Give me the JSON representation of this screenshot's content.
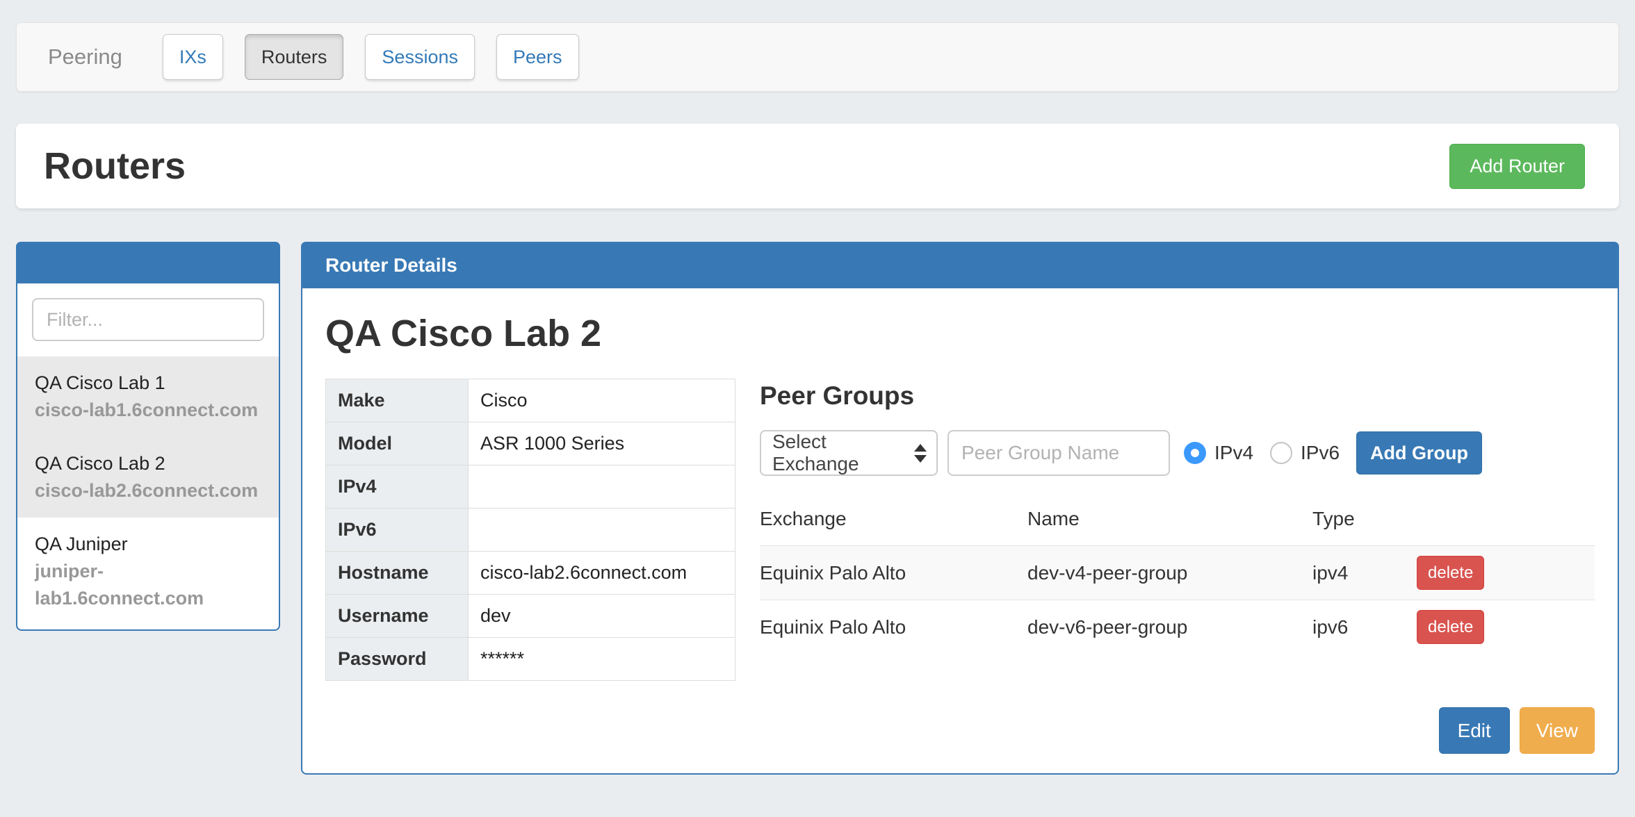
{
  "colors": {
    "primary_blue": "#3879b5",
    "link_blue": "#337ab7",
    "success_green": "#5cb85c",
    "danger_red": "#d9534f",
    "warning_orange": "#f0ad4e",
    "radio_selected_blue": "#3b99fd",
    "page_background": "#eaedf0"
  },
  "nav": {
    "brand": "Peering",
    "tabs": [
      {
        "label": "IXs",
        "active": false
      },
      {
        "label": "Routers",
        "active": true
      },
      {
        "label": "Sessions",
        "active": false
      },
      {
        "label": "Peers",
        "active": false
      }
    ]
  },
  "page_header": {
    "title": "Routers",
    "add_button": "Add Router"
  },
  "sidebar": {
    "filter_placeholder": "Filter...",
    "routers": [
      {
        "name": "QA Cisco Lab 1",
        "hostname": "cisco-lab1.6connect.com",
        "highlighted": true
      },
      {
        "name": "QA Cisco Lab 2",
        "hostname": "cisco-lab2.6connect.com",
        "highlighted": true
      },
      {
        "name": "QA Juniper",
        "hostname": "juniper-lab1.6connect.com",
        "highlighted": false
      }
    ]
  },
  "details": {
    "panel_title": "Router Details",
    "router_name": "QA Cisco Lab 2",
    "fields": [
      {
        "label": "Make",
        "value": "Cisco"
      },
      {
        "label": "Model",
        "value": "ASR 1000 Series"
      },
      {
        "label": "IPv4",
        "value": ""
      },
      {
        "label": "IPv6",
        "value": ""
      },
      {
        "label": "Hostname",
        "value": "cisco-lab2.6connect.com"
      },
      {
        "label": "Username",
        "value": "dev"
      },
      {
        "label": "Password",
        "value": "******"
      }
    ],
    "actions": {
      "edit": "Edit",
      "view": "View"
    }
  },
  "peer_groups": {
    "title": "Peer Groups",
    "exchange_select_value": "Select Exchange",
    "name_placeholder": "Peer Group Name",
    "radios": {
      "ipv4": "IPv4",
      "ipv6": "IPv6",
      "selected": "IPv4"
    },
    "add_button": "Add Group",
    "table": {
      "headers": [
        "Exchange",
        "Name",
        "Type"
      ],
      "rows": [
        {
          "exchange": "Equinix Palo Alto",
          "name": "dev-v4-peer-group",
          "type": "ipv4",
          "action": "delete"
        },
        {
          "exchange": "Equinix Palo Alto",
          "name": "dev-v6-peer-group",
          "type": "ipv6",
          "action": "delete"
        }
      ]
    }
  }
}
